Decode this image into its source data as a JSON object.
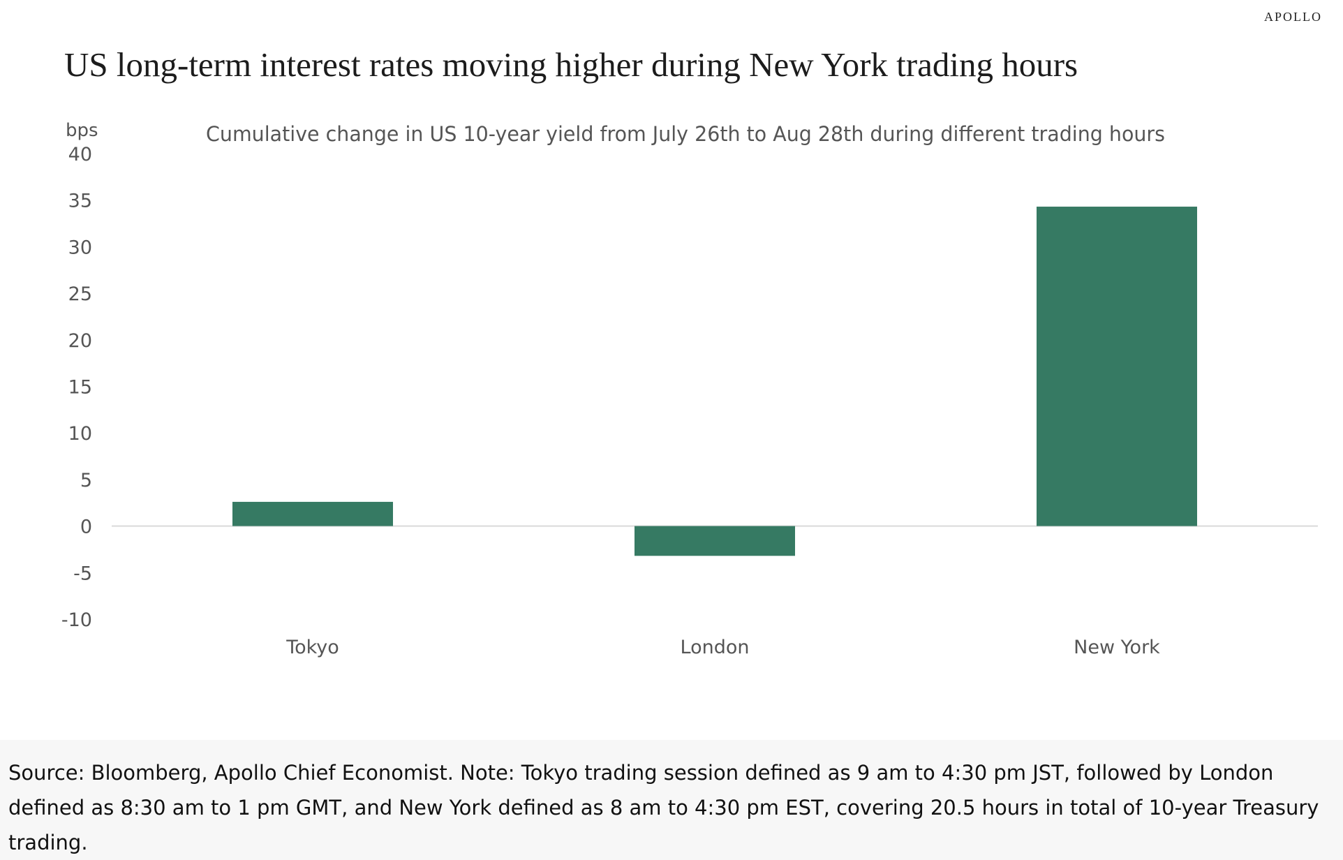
{
  "brand": "APOLLO",
  "title": "US long-term interest rates moving higher during New York trading hours",
  "source_note": "Source: Bloomberg, Apollo Chief Economist. Note: Tokyo trading session defined as 9 am to 4:30 pm JST, followed by London defined as 8:30 am to 1 pm GMT, and New York defined as 8 am to 4:30 pm EST, covering 20.5 hours in total of 10-year Treasury trading.",
  "chart_data": {
    "type": "bar",
    "title": "US long-term interest rates moving higher during New York trading hours",
    "subtitle": "Cumulative change in US 10-year yield from July 26th to Aug 28th during different trading hours",
    "xlabel": "",
    "ylabel": "bps",
    "categories": [
      "Tokyo",
      "London",
      "New York"
    ],
    "values": [
      2.6,
      -3.2,
      34.3
    ],
    "ylim": [
      -10,
      40
    ],
    "yticks": [
      40,
      35,
      30,
      25,
      20,
      15,
      10,
      5,
      0,
      -5,
      -10
    ],
    "grid": false,
    "legend": "none",
    "bar_color": "#367a63",
    "zero_line_color": "#d9d9d9",
    "tick_color": "#555555"
  }
}
